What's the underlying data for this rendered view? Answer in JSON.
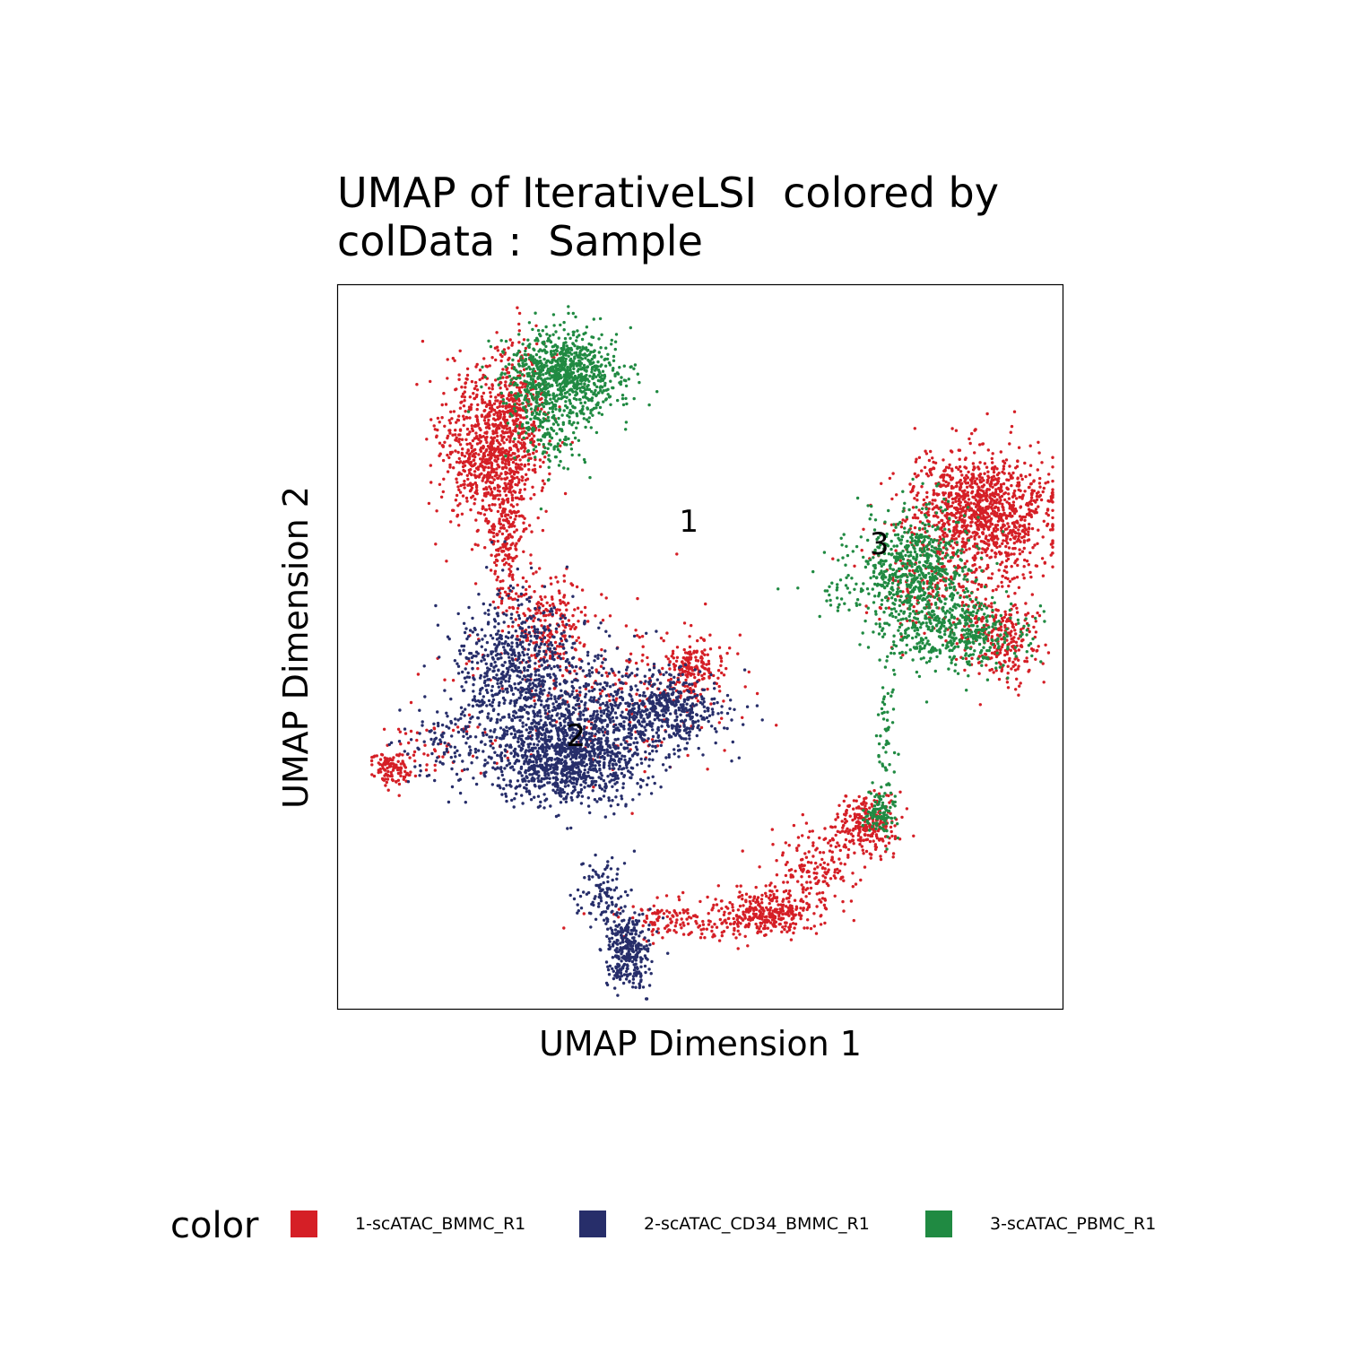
{
  "chart_data": {
    "type": "scatter",
    "title_lines": [
      "UMAP of IterativeLSI  colored by",
      "colData :  Sample"
    ],
    "xlabel": "UMAP Dimension 1",
    "ylabel": "UMAP Dimension 2",
    "xlim": [
      0,
      1
    ],
    "ylim": [
      0,
      1
    ],
    "grid": false,
    "legend": {
      "title": "color",
      "placement": "bottom",
      "entries": [
        {
          "label": "1-scATAC_BMMC_R1",
          "color": "#D51F26"
        },
        {
          "label": "2-scATAC_CD34_BMMC_R1",
          "color": "#272E6A"
        },
        {
          "label": "3-scATAC_PBMC_R1",
          "color": "#208A42"
        }
      ]
    },
    "cluster_labels": [
      {
        "text": "1",
        "x": 0.484,
        "y": 0.672
      },
      {
        "text": "3",
        "x": 0.749,
        "y": 0.641
      },
      {
        "text": "2",
        "x": 0.327,
        "y": 0.374
      }
    ],
    "series": [
      {
        "name": "1-scATAC_BMMC_R1",
        "color": "#D51F26",
        "regions": [
          {
            "cx": 0.21,
            "cy": 0.78,
            "sx": 0.035,
            "sy": 0.055,
            "n": 900
          },
          {
            "cx": 0.25,
            "cy": 0.84,
            "sx": 0.02,
            "sy": 0.04,
            "n": 200
          },
          {
            "cx": 0.23,
            "cy": 0.65,
            "sx": 0.012,
            "sy": 0.045,
            "n": 180
          },
          {
            "cx": 0.29,
            "cy": 0.53,
            "sx": 0.03,
            "sy": 0.035,
            "n": 220
          },
          {
            "cx": 0.49,
            "cy": 0.47,
            "sx": 0.02,
            "sy": 0.02,
            "n": 180
          },
          {
            "cx": 0.38,
            "cy": 0.44,
            "sx": 0.09,
            "sy": 0.06,
            "n": 220
          },
          {
            "cx": 0.07,
            "cy": 0.33,
            "sx": 0.013,
            "sy": 0.012,
            "n": 110
          },
          {
            "cx": 0.13,
            "cy": 0.36,
            "sx": 0.04,
            "sy": 0.02,
            "n": 50
          },
          {
            "cx": 0.89,
            "cy": 0.69,
            "sx": 0.05,
            "sy": 0.04,
            "n": 1100
          },
          {
            "cx": 0.92,
            "cy": 0.51,
            "sx": 0.025,
            "sy": 0.03,
            "n": 250
          },
          {
            "cx": 0.84,
            "cy": 0.58,
            "sx": 0.05,
            "sy": 0.04,
            "n": 250
          },
          {
            "cx": 0.73,
            "cy": 0.25,
            "sx": 0.02,
            "sy": 0.022,
            "n": 260
          },
          {
            "cx": 0.59,
            "cy": 0.13,
            "sx": 0.03,
            "sy": 0.017,
            "n": 300
          },
          {
            "cx": 0.66,
            "cy": 0.19,
            "sx": 0.03,
            "sy": 0.03,
            "n": 170
          },
          {
            "cx": 0.48,
            "cy": 0.12,
            "sx": 0.05,
            "sy": 0.015,
            "n": 150
          }
        ]
      },
      {
        "name": "2-scATAC_CD34_BMMC_R1",
        "color": "#272E6A",
        "regions": [
          {
            "cx": 0.24,
            "cy": 0.48,
            "sx": 0.04,
            "sy": 0.045,
            "n": 500
          },
          {
            "cx": 0.32,
            "cy": 0.34,
            "sx": 0.05,
            "sy": 0.03,
            "n": 800
          },
          {
            "cx": 0.44,
            "cy": 0.41,
            "sx": 0.05,
            "sy": 0.03,
            "n": 600
          },
          {
            "cx": 0.29,
            "cy": 0.4,
            "sx": 0.06,
            "sy": 0.05,
            "n": 700
          },
          {
            "cx": 0.15,
            "cy": 0.36,
            "sx": 0.03,
            "sy": 0.025,
            "n": 100
          },
          {
            "cx": 0.4,
            "cy": 0.08,
            "sx": 0.016,
            "sy": 0.03,
            "n": 330
          },
          {
            "cx": 0.36,
            "cy": 0.16,
            "sx": 0.02,
            "sy": 0.03,
            "n": 100
          }
        ]
      },
      {
        "name": "3-scATAC_PBMC_R1",
        "color": "#208A42",
        "regions": [
          {
            "cx": 0.31,
            "cy": 0.88,
            "sx": 0.04,
            "sy": 0.03,
            "n": 900
          },
          {
            "cx": 0.29,
            "cy": 0.8,
            "sx": 0.025,
            "sy": 0.03,
            "n": 150
          },
          {
            "cx": 0.8,
            "cy": 0.61,
            "sx": 0.04,
            "sy": 0.04,
            "n": 650
          },
          {
            "cx": 0.86,
            "cy": 0.52,
            "sx": 0.05,
            "sy": 0.025,
            "n": 450
          },
          {
            "cx": 0.76,
            "cy": 0.38,
            "sx": 0.008,
            "sy": 0.06,
            "n": 60
          },
          {
            "cx": 0.75,
            "cy": 0.27,
            "sx": 0.01,
            "sy": 0.015,
            "n": 100
          },
          {
            "cx": 0.7,
            "cy": 0.58,
            "sx": 0.03,
            "sy": 0.02,
            "n": 40
          }
        ]
      }
    ]
  }
}
